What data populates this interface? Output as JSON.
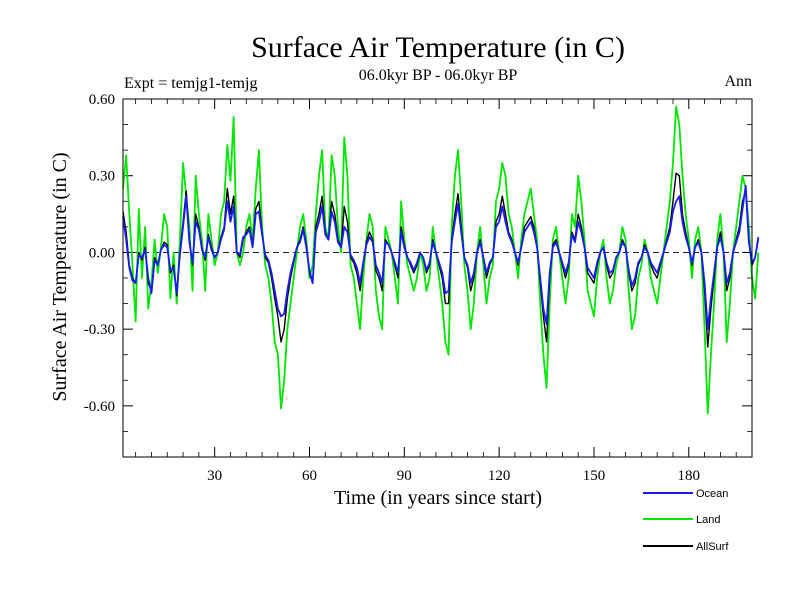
{
  "chart_data": {
    "type": "line",
    "title": "Surface Air Temperature (in C)",
    "subtitle": "06.0kyr BP - 06.0kyr BP",
    "left_label": "Expt = temjg1-temjg",
    "right_label": "Ann",
    "xlabel": "Time (in years since start)",
    "ylabel": "Surface Air Temperature (in C)",
    "xlim": [
      1,
      200
    ],
    "ylim": [
      -0.8,
      0.6
    ],
    "xticks": [
      30,
      60,
      90,
      120,
      150,
      180
    ],
    "xtick_labels": [
      "30",
      "60",
      "90",
      "120",
      "150",
      "180"
    ],
    "yticks": [
      0.6,
      0.3,
      0.0,
      -0.3,
      -0.6
    ],
    "ytick_labels": [
      "0.60",
      "0.30",
      "0.00",
      "-0.30",
      "-0.60"
    ],
    "zero_line": true,
    "legend_position": "bottom-right",
    "series": [
      {
        "name": "Land",
        "color": "#00e600",
        "x_start": 1,
        "x_step": 1,
        "values": [
          0.25,
          0.38,
          0.15,
          -0.05,
          -0.27,
          0.17,
          -0.1,
          0.1,
          -0.22,
          -0.12,
          0.05,
          -0.08,
          0.02,
          0.15,
          0.1,
          -0.18,
          0.0,
          -0.2,
          0.05,
          0.35,
          0.22,
          0.1,
          -0.15,
          0.3,
          0.15,
          0.05,
          -0.15,
          0.15,
          0.05,
          -0.05,
          0.0,
          0.15,
          0.2,
          0.42,
          0.28,
          0.53,
          0.0,
          -0.05,
          0.0,
          0.1,
          0.15,
          0.05,
          0.25,
          0.4,
          0.1,
          -0.05,
          -0.1,
          -0.2,
          -0.35,
          -0.4,
          -0.61,
          -0.5,
          -0.3,
          -0.2,
          -0.1,
          0.0,
          0.1,
          0.15,
          0.05,
          -0.1,
          -0.05,
          0.15,
          0.3,
          0.4,
          0.1,
          0.05,
          0.38,
          0.3,
          0.1,
          0.0,
          0.45,
          0.3,
          -0.05,
          -0.1,
          -0.2,
          -0.3,
          -0.1,
          0.05,
          0.15,
          0.1,
          -0.15,
          -0.25,
          -0.3,
          0.1,
          0.05,
          0.0,
          -0.1,
          -0.2,
          0.2,
          0.05,
          -0.05,
          -0.1,
          -0.15,
          -0.1,
          0.0,
          -0.05,
          -0.15,
          -0.1,
          0.1,
          0.0,
          -0.1,
          -0.2,
          -0.35,
          -0.4,
          0.1,
          0.3,
          0.4,
          0.2,
          -0.05,
          -0.15,
          -0.3,
          -0.2,
          0.0,
          0.1,
          -0.05,
          -0.2,
          -0.1,
          -0.05,
          0.2,
          0.25,
          0.35,
          0.3,
          0.15,
          0.1,
          0.0,
          -0.1,
          0.05,
          0.15,
          0.2,
          0.25,
          0.15,
          0.05,
          -0.2,
          -0.4,
          -0.53,
          -0.2,
          0.05,
          0.1,
          0.0,
          -0.1,
          -0.2,
          -0.1,
          0.15,
          0.1,
          0.3,
          0.2,
          0.05,
          -0.15,
          -0.2,
          -0.25,
          -0.1,
          0.0,
          0.05,
          -0.1,
          -0.2,
          -0.15,
          -0.05,
          0.0,
          0.1,
          0.05,
          -0.15,
          -0.3,
          -0.25,
          -0.1,
          -0.05,
          0.05,
          0.0,
          -0.1,
          -0.15,
          -0.2,
          -0.1,
          0.0,
          0.1,
          0.2,
          0.35,
          0.57,
          0.5,
          0.3,
          0.15,
          0.05,
          -0.1,
          0.05,
          0.1,
          0.0,
          -0.3,
          -0.63,
          -0.4,
          -0.2,
          0.05,
          0.15,
          0.0,
          -0.35,
          -0.2,
          0.0,
          0.1,
          0.2,
          0.3,
          0.25,
          0.1,
          -0.1,
          -0.18,
          0.0
        ]
      },
      {
        "name": "AllSurf",
        "color": "#000000",
        "x_start": 1,
        "x_step": 1,
        "values": [
          0.16,
          0.08,
          -0.05,
          -0.1,
          -0.12,
          0.0,
          -0.03,
          0.02,
          -0.12,
          -0.15,
          -0.02,
          -0.05,
          0.01,
          0.04,
          0.03,
          -0.08,
          -0.05,
          -0.17,
          0.0,
          0.12,
          0.24,
          0.05,
          -0.05,
          0.15,
          0.1,
          0.02,
          -0.03,
          0.07,
          0.02,
          -0.02,
          0.0,
          0.06,
          0.1,
          0.25,
          0.15,
          0.22,
          0.0,
          -0.02,
          0.05,
          0.08,
          0.1,
          0.03,
          0.17,
          0.2,
          0.08,
          -0.02,
          -0.04,
          -0.1,
          -0.18,
          -0.25,
          -0.35,
          -0.3,
          -0.18,
          -0.1,
          -0.04,
          0.02,
          0.05,
          0.1,
          0.03,
          -0.08,
          -0.12,
          0.1,
          0.15,
          0.22,
          0.08,
          0.05,
          0.2,
          0.15,
          0.05,
          0.02,
          0.18,
          0.12,
          -0.02,
          -0.04,
          -0.08,
          -0.15,
          -0.05,
          0.04,
          0.08,
          0.05,
          -0.07,
          -0.1,
          -0.15,
          0.05,
          0.03,
          0.0,
          -0.05,
          -0.1,
          0.1,
          0.03,
          -0.02,
          -0.05,
          -0.08,
          -0.05,
          0.0,
          -0.02,
          -0.08,
          -0.05,
          0.05,
          0.0,
          -0.05,
          -0.1,
          -0.2,
          -0.2,
          0.05,
          0.15,
          0.23,
          0.1,
          -0.02,
          -0.06,
          -0.15,
          -0.1,
          0.0,
          0.05,
          -0.02,
          -0.1,
          -0.05,
          -0.02,
          0.12,
          0.15,
          0.22,
          0.15,
          0.08,
          0.05,
          0.0,
          -0.05,
          0.02,
          0.1,
          0.12,
          0.14,
          0.1,
          0.02,
          -0.12,
          -0.25,
          -0.35,
          -0.1,
          0.03,
          0.05,
          0.0,
          -0.05,
          -0.1,
          -0.05,
          0.08,
          0.05,
          0.15,
          0.1,
          0.02,
          -0.08,
          -0.1,
          -0.12,
          -0.05,
          0.0,
          0.02,
          -0.05,
          -0.1,
          -0.08,
          -0.02,
          0.0,
          0.05,
          0.02,
          -0.08,
          -0.15,
          -0.12,
          -0.05,
          -0.02,
          0.03,
          0.0,
          -0.05,
          -0.08,
          -0.1,
          -0.05,
          0.0,
          0.05,
          0.1,
          0.2,
          0.31,
          0.3,
          0.15,
          0.08,
          0.02,
          -0.05,
          0.02,
          0.05,
          0.0,
          -0.15,
          -0.37,
          -0.22,
          -0.1,
          0.02,
          0.08,
          0.0,
          -0.15,
          -0.1,
          0.0,
          0.05,
          0.1,
          0.2,
          0.24,
          0.05,
          -0.05,
          -0.02,
          0.05
        ]
      },
      {
        "name": "Ocean",
        "color": "#1a1aff",
        "x_start": 1,
        "x_step": 1,
        "values": [
          0.14,
          0.05,
          -0.06,
          -0.11,
          -0.12,
          -0.01,
          -0.02,
          0.01,
          -0.1,
          -0.16,
          -0.03,
          -0.05,
          0.01,
          0.03,
          0.02,
          -0.07,
          -0.06,
          -0.16,
          -0.01,
          0.1,
          0.22,
          0.04,
          -0.04,
          0.12,
          0.09,
          0.01,
          -0.02,
          0.06,
          0.01,
          -0.02,
          0.0,
          0.05,
          0.09,
          0.2,
          0.12,
          0.18,
          0.0,
          -0.01,
          0.06,
          0.07,
          0.09,
          0.02,
          0.15,
          0.16,
          0.07,
          -0.01,
          -0.03,
          -0.08,
          -0.15,
          -0.22,
          -0.25,
          -0.24,
          -0.15,
          -0.08,
          -0.03,
          0.02,
          0.04,
          0.09,
          0.02,
          -0.07,
          -0.12,
          0.08,
          0.12,
          0.18,
          0.07,
          0.05,
          0.16,
          0.12,
          0.04,
          0.02,
          0.1,
          0.08,
          -0.01,
          -0.03,
          -0.06,
          -0.12,
          -0.04,
          0.03,
          0.06,
          0.04,
          -0.05,
          -0.08,
          -0.12,
          0.04,
          0.03,
          0.0,
          -0.04,
          -0.08,
          0.08,
          0.02,
          -0.02,
          -0.04,
          -0.07,
          -0.04,
          0.0,
          -0.02,
          -0.07,
          -0.04,
          0.04,
          0.0,
          -0.04,
          -0.08,
          -0.16,
          -0.15,
          0.04,
          0.12,
          0.19,
          0.08,
          -0.02,
          -0.05,
          -0.12,
          -0.08,
          0.0,
          0.04,
          -0.02,
          -0.08,
          -0.04,
          -0.02,
          0.1,
          0.12,
          0.18,
          0.12,
          0.07,
          0.04,
          0.0,
          -0.04,
          0.02,
          0.08,
          0.1,
          0.12,
          0.08,
          0.02,
          -0.1,
          -0.22,
          -0.28,
          -0.08,
          0.02,
          0.04,
          0.0,
          -0.04,
          -0.08,
          -0.04,
          0.07,
          0.04,
          0.12,
          0.08,
          0.02,
          -0.06,
          -0.08,
          -0.1,
          -0.04,
          0.0,
          0.02,
          -0.04,
          -0.08,
          -0.07,
          -0.02,
          0.0,
          0.04,
          0.02,
          -0.07,
          -0.13,
          -0.1,
          -0.04,
          -0.02,
          0.02,
          0.0,
          -0.04,
          -0.06,
          -0.08,
          -0.04,
          0.0,
          0.04,
          0.08,
          0.16,
          0.2,
          0.22,
          0.12,
          0.06,
          0.02,
          -0.04,
          0.02,
          0.04,
          0.0,
          -0.12,
          -0.3,
          -0.18,
          -0.08,
          0.02,
          0.06,
          0.0,
          -0.12,
          -0.08,
          0.0,
          0.04,
          0.08,
          0.17,
          0.26,
          0.04,
          -0.04,
          -0.02,
          0.06
        ]
      }
    ],
    "legend": [
      {
        "name": "Ocean",
        "color": "#1a1aff"
      },
      {
        "name": "Land",
        "color": "#00e600"
      },
      {
        "name": "AllSurf",
        "color": "#000000"
      }
    ]
  }
}
